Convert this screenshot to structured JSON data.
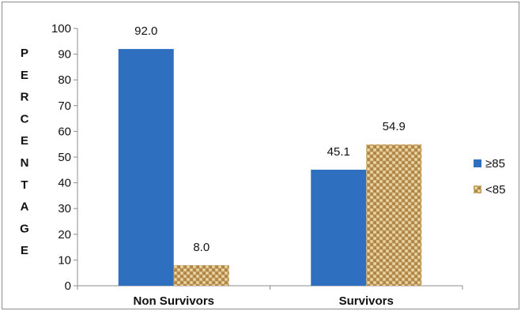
{
  "chart_data": {
    "type": "bar",
    "title": "",
    "ylabel": "PERCENTAGE",
    "xlabel": "",
    "ylim": [
      0,
      100
    ],
    "yticks": [
      0,
      10,
      20,
      30,
      40,
      50,
      60,
      70,
      80,
      90,
      100
    ],
    "categories": [
      "Non Survivors",
      "Survivors"
    ],
    "series": [
      {
        "name": "≥85",
        "values": [
          92.0,
          45.1
        ],
        "labels": [
          "92.0",
          "45.1"
        ],
        "color": "#2e6fc0"
      },
      {
        "name": "<85",
        "values": [
          8.0,
          54.9
        ],
        "labels": [
          "8.0",
          "54.9"
        ],
        "color": "#c9a96a",
        "pattern": "woven-texture"
      }
    ],
    "legend": "right",
    "grid": false
  }
}
